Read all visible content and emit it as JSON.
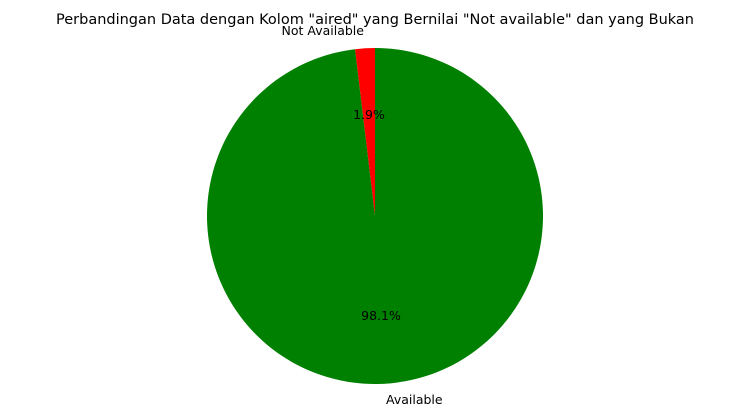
{
  "chart_data": {
    "type": "pie",
    "title": "Perbandingan Data dengan Kolom \"aired\" yang Bernilai \"Not available\" dan yang Bukan",
    "slices": [
      {
        "label": "Not Available",
        "value": 1.9,
        "pct_label": "1.9%",
        "color": "#ff0000"
      },
      {
        "label": "Available",
        "value": 98.1,
        "pct_label": "98.1%",
        "color": "#008000"
      }
    ],
    "start_angle_deg": 90,
    "direction": "counterclockwise",
    "legend": "none",
    "grid": false
  }
}
